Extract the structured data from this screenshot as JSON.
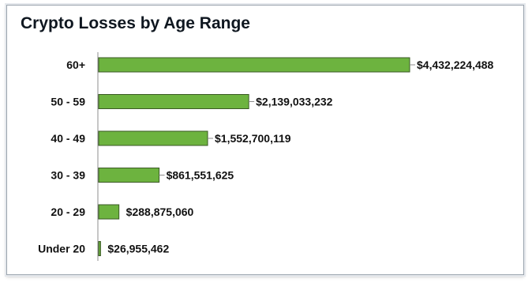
{
  "chart_data": {
    "type": "bar",
    "orientation": "horizontal",
    "title": "Crypto Losses by Age Range",
    "categories": [
      "60+",
      "50 - 59",
      "40 - 49",
      "30 - 39",
      "20 - 29",
      "Under 20"
    ],
    "values": [
      4432224488,
      2139033232,
      1552700119,
      861551625,
      288875060,
      26955462
    ],
    "value_labels": [
      "$4,432,224,488",
      "$2,139,033,232",
      "$1,552,700,119",
      "$861,551,625",
      "$288,875,060",
      "$26,955,462"
    ],
    "xlim": [
      0,
      4432224488
    ],
    "grid": false,
    "legend": "none",
    "colors": {
      "bar": "#6db33f",
      "bar_border": "#3a5a24",
      "axis": "#8c8c8c",
      "text": "#111111"
    }
  }
}
